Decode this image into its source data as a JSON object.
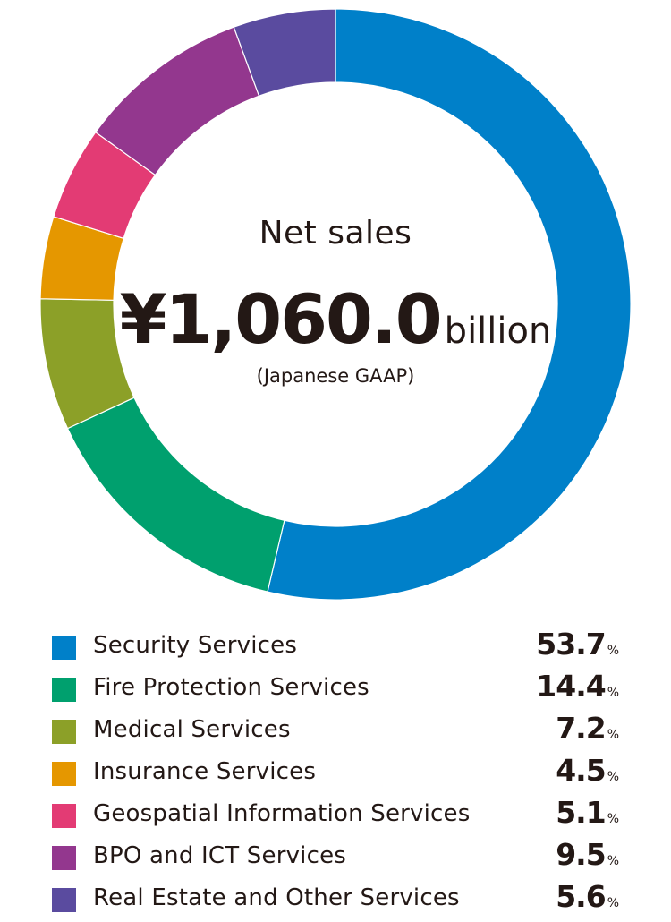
{
  "chart_data": {
    "type": "pie",
    "style": "donut",
    "title": "Net sales",
    "center_amount": "¥1,060.0",
    "center_unit": "billion",
    "center_note": "(Japanese GAAP)",
    "start": "top, clockwise",
    "legend_position": "bottom",
    "value_unit": "%",
    "categories": [
      "Security Services",
      "Fire Protection Services",
      "Medical Services",
      "Insurance Services",
      "Geospatial Information Services",
      "BPO and ICT Services",
      "Real Estate and Other Services"
    ],
    "values": [
      53.7,
      14.4,
      7.2,
      4.5,
      5.1,
      9.5,
      5.6
    ],
    "value_labels": [
      "53.7",
      "14.4",
      "7.2",
      "4.5",
      "5.1",
      "9.5",
      "5.6"
    ],
    "colors": [
      "#0080C9",
      "#00A06E",
      "#8CA028",
      "#E59700",
      "#E33B74",
      "#93378E",
      "#5A4B9F"
    ]
  }
}
